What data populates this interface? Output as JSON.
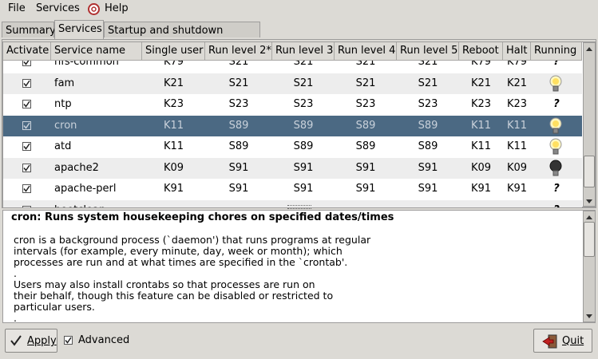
{
  "menu": [
    "File",
    "Services",
    "Help"
  ],
  "tabs": [
    "Summary",
    "Services",
    "Startup and shutdown scripts"
  ],
  "table": {
    "columns": [
      "Activate",
      "Service name",
      "Single user",
      "Run level 2*",
      "Run level 3",
      "Run level 4",
      "Run level 5",
      "Reboot",
      "Halt",
      "Running"
    ],
    "rows": [
      [
        "nfs-common",
        "K79",
        "S21",
        "S21",
        "S21",
        "S21",
        "K79",
        "K79",
        "?"
      ],
      [
        "fam",
        "K21",
        "S21",
        "S21",
        "S21",
        "S21",
        "K21",
        "K21"
      ],
      [
        "ntp",
        "K23",
        "S23",
        "S23",
        "S23",
        "S23",
        "K23",
        "K23",
        "?"
      ],
      [
        "cron",
        "K11",
        "S89",
        "S89",
        "S89",
        "S89",
        "K11",
        "K11"
      ],
      [
        "atd",
        "K11",
        "S89",
        "S89",
        "S89",
        "S89",
        "K11",
        "K11"
      ],
      [
        "apache2",
        "K09",
        "S91",
        "S91",
        "S91",
        "S91",
        "K09",
        "K09"
      ],
      [
        "apache-perl",
        "K91",
        "S91",
        "S91",
        "S91",
        "S91",
        "K91",
        "K91",
        "?"
      ],
      [
        "bootclean",
        "---",
        "---",
        "---",
        "---",
        "---",
        "---",
        "---",
        "?"
      ]
    ]
  },
  "description": {
    "title": "cron: Runs system housekeeping chores on specified dates/times",
    "lines": [
      "cron is a background process (`daemon') that runs programs at regular",
      "intervals (for example, every minute, day, week or month); which",
      "processes are run and at what times are specified in the `crontab'.",
      ".",
      "Users may also install crontabs so that processes are run on",
      "their behalf, though this feature can be disabled or restricted to",
      "particular users.",
      "."
    ]
  },
  "buttons": {
    "apply": "Apply",
    "advanced": "Advanced",
    "quit": "Quit"
  }
}
